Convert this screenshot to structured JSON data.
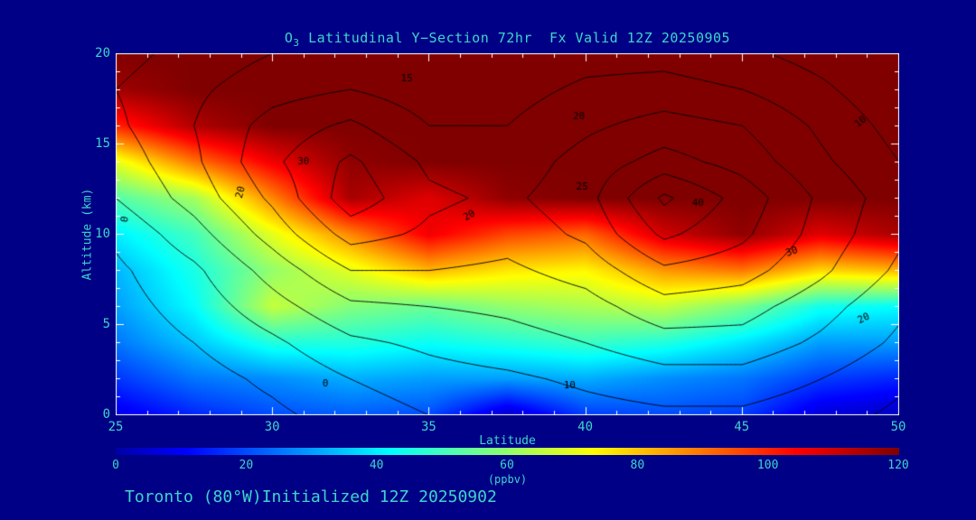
{
  "title": {
    "pre": "O",
    "sub": "3",
    "post": " Latitudinal Y−Section 72hr  Fx Valid 12Z 20250905"
  },
  "footer": "Toronto (80°W)Initialized 12Z 20250902",
  "axes": {
    "x_label": "Latitude",
    "y_label": "Altitude (km)",
    "x_ticks": [
      25,
      30,
      35,
      40,
      45,
      50
    ],
    "y_ticks": [
      0,
      5,
      10,
      15,
      20
    ],
    "x_minor_step": 1,
    "y_minor_step": 1,
    "x_range": [
      25,
      50
    ],
    "y_range": [
      0,
      20
    ]
  },
  "colorbar": {
    "ticks": [
      0,
      20,
      40,
      60,
      80,
      100,
      120
    ],
    "label": "(ppbv)",
    "min": 0,
    "max": 120
  },
  "colors": {
    "background": "#000086",
    "text": "#3fd4cb",
    "frame": "#ffffff",
    "contour": "#000000"
  },
  "chart_data": {
    "type": "heatmap",
    "title": "O3 Latitudinal Y-Section 72hr Fx Valid 12Z 20250905",
    "xlabel": "Latitude",
    "ylabel": "Altitude (km)",
    "units": "ppbv",
    "x": [
      25,
      27.5,
      30,
      32.5,
      35,
      37.5,
      40,
      42.5,
      45,
      47.5,
      50
    ],
    "y": [
      20,
      18,
      16,
      14,
      12,
      10,
      8,
      6,
      4,
      2,
      0
    ],
    "zlim": [
      0,
      120
    ],
    "values": [
      [
        120,
        120,
        120,
        120,
        120,
        120,
        120,
        120,
        120,
        120,
        120
      ],
      [
        116,
        120,
        120,
        120,
        120,
        120,
        120,
        120,
        120,
        120,
        120
      ],
      [
        100,
        114,
        120,
        120,
        120,
        120,
        120,
        120,
        120,
        120,
        120
      ],
      [
        70,
        90,
        106,
        118,
        120,
        120,
        120,
        120,
        120,
        120,
        120
      ],
      [
        52,
        62,
        88,
        115,
        108,
        118,
        120,
        120,
        120,
        120,
        120
      ],
      [
        40,
        50,
        70,
        88,
        106,
        96,
        92,
        110,
        118,
        108,
        115
      ],
      [
        33,
        45,
        60,
        70,
        82,
        76,
        74,
        86,
        90,
        78,
        82
      ],
      [
        30,
        42,
        66,
        58,
        55,
        60,
        63,
        66,
        57,
        44,
        42
      ],
      [
        25,
        35,
        46,
        46,
        43,
        46,
        49,
        46,
        39,
        30,
        30
      ],
      [
        17,
        25,
        28,
        32,
        30,
        30,
        32,
        28,
        25,
        18,
        15
      ],
      [
        8,
        15,
        20,
        22,
        20,
        4,
        18,
        20,
        18,
        6,
        3
      ]
    ],
    "contour": {
      "levels": [
        0,
        5,
        10,
        15,
        20,
        25,
        30,
        35,
        40
      ],
      "values": [
        [
          8,
          12,
          15,
          16,
          15,
          16,
          18,
          18,
          16,
          13,
          10
        ],
        [
          10,
          14,
          18,
          20,
          17,
          18,
          21,
          22,
          20,
          16,
          11
        ],
        [
          9,
          15,
          22,
          26,
          20,
          20,
          24,
          27,
          25,
          19,
          13
        ],
        [
          7,
          14,
          24,
          31,
          24,
          22,
          27,
          32,
          28,
          21,
          15
        ],
        [
          5,
          12,
          21,
          33,
          26,
          24,
          28,
          41,
          33,
          24,
          17
        ],
        [
          1,
          8,
          17,
          27,
          24,
          22,
          26,
          36,
          31,
          23,
          16
        ],
        [
          -1,
          4,
          12,
          20,
          20,
          19,
          22,
          29,
          27,
          21,
          14
        ],
        [
          -2,
          2,
          8,
          14,
          15,
          16,
          18,
          23,
          22,
          17,
          11
        ],
        [
          -3,
          0,
          4,
          9,
          11,
          13,
          15,
          18,
          18,
          14,
          9
        ],
        [
          -4,
          -2,
          1,
          5,
          8,
          9,
          11,
          13,
          13,
          10,
          6
        ],
        [
          -5,
          -3,
          -1,
          2,
          5,
          6,
          8,
          9,
          9,
          7,
          4
        ]
      ],
      "labels": [
        {
          "v": "15",
          "lat": 34.3,
          "alt": 18.6,
          "rot": 0
        },
        {
          "v": "20",
          "lat": 39.8,
          "alt": 16.5,
          "rot": 0
        },
        {
          "v": "10",
          "lat": 48.8,
          "alt": 16.2,
          "rot": -40
        },
        {
          "v": "30",
          "lat": 31.0,
          "alt": 14.0,
          "rot": 0
        },
        {
          "v": "20",
          "lat": 29.0,
          "alt": 12.3,
          "rot": -75
        },
        {
          "v": "25",
          "lat": 39.9,
          "alt": 12.6,
          "rot": 0
        },
        {
          "v": "40",
          "lat": 43.6,
          "alt": 11.7,
          "rot": 0
        },
        {
          "v": "20",
          "lat": 36.3,
          "alt": 11.0,
          "rot": -30
        },
        {
          "v": "30",
          "lat": 46.6,
          "alt": 9.0,
          "rot": -20
        },
        {
          "v": "20",
          "lat": 48.9,
          "alt": 5.3,
          "rot": -25
        },
        {
          "v": "10",
          "lat": 39.5,
          "alt": 1.6,
          "rot": 0
        },
        {
          "v": "0",
          "lat": 31.7,
          "alt": 1.7,
          "rot": 0
        },
        {
          "v": "0",
          "lat": 25.3,
          "alt": 10.8,
          "rot": -80
        }
      ]
    }
  }
}
